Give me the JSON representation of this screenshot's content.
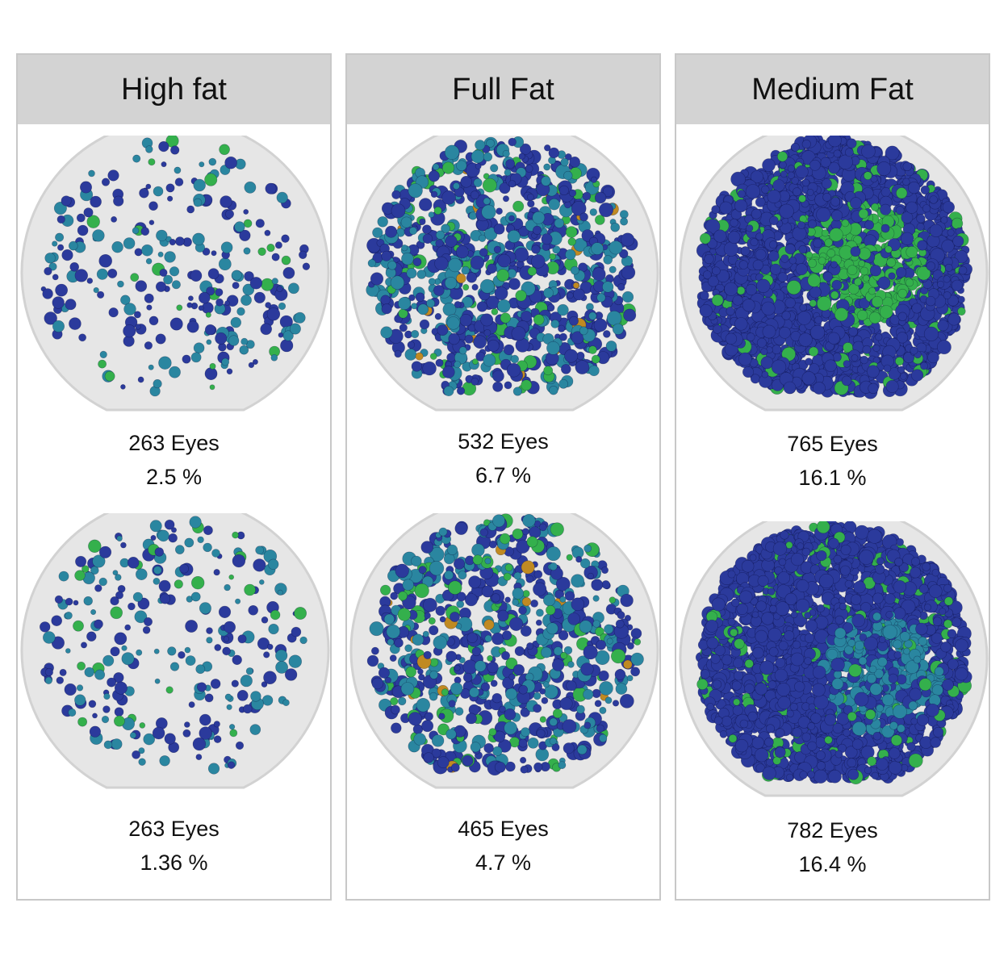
{
  "colors": {
    "panel_header": "#d3d3d3",
    "panel_border": "#c8c8c8",
    "dome_fill": "#e6e6e6",
    "eye_blue": "#2b3a9c",
    "eye_teal": "#2a86a0",
    "eye_green": "#34b04c",
    "eye_orange": "#c08a22"
  },
  "panels": [
    {
      "title": "High fat",
      "samples": [
        {
          "eyes": "263 Eyes",
          "percent": "2.5 %"
        },
        {
          "eyes": "263 Eyes",
          "percent": "1.36 %"
        }
      ]
    },
    {
      "title": "Full Fat",
      "samples": [
        {
          "eyes": "532 Eyes",
          "percent": "6.7 %"
        },
        {
          "eyes": "465 Eyes",
          "percent": "4.7 %"
        }
      ]
    },
    {
      "title": "Medium Fat",
      "samples": [
        {
          "eyes": "765 Eyes",
          "percent": "16.1 %"
        },
        {
          "eyes": "782 Eyes",
          "percent": "16.4 %"
        }
      ]
    }
  ]
}
